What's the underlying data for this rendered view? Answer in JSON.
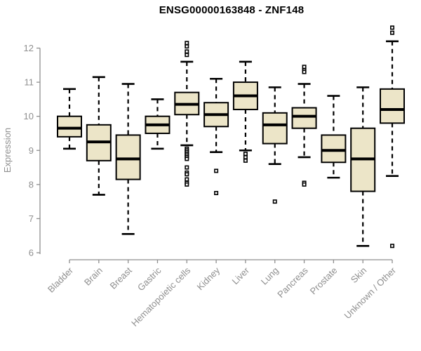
{
  "title": "ENSG00000163848 - ZNF148",
  "chart_data": {
    "type": "boxplot",
    "title": "ENSG00000163848 - ZNF148",
    "xlabel": "",
    "ylabel": "Expression",
    "ylim": [
      6,
      12.7
    ],
    "yticks": [
      6,
      7,
      8,
      9,
      10,
      11,
      12
    ],
    "grid": false,
    "legend": "none",
    "categories": [
      "Bladder",
      "Brain",
      "Breast",
      "Gastric",
      "Hematopoietic cells",
      "Kidney",
      "Liver",
      "Lung",
      "Pancreas",
      "Prostate",
      "Skin",
      "Unknown / Other"
    ],
    "series": [
      {
        "name": "Bladder",
        "whisker_low": 9.05,
        "q1": 9.4,
        "median": 9.65,
        "q3": 10.0,
        "whisker_high": 10.8,
        "outliers": []
      },
      {
        "name": "Brain",
        "whisker_low": 7.7,
        "q1": 8.7,
        "median": 9.25,
        "q3": 9.75,
        "whisker_high": 11.15,
        "outliers": []
      },
      {
        "name": "Breast",
        "whisker_low": 6.55,
        "q1": 8.15,
        "median": 8.75,
        "q3": 9.45,
        "whisker_high": 10.95,
        "outliers": []
      },
      {
        "name": "Gastric",
        "whisker_low": 9.05,
        "q1": 9.5,
        "median": 9.75,
        "q3": 10.0,
        "whisker_high": 10.5,
        "outliers": []
      },
      {
        "name": "Hematopoietic cells",
        "whisker_low": 9.15,
        "q1": 10.05,
        "median": 10.35,
        "q3": 10.7,
        "whisker_high": 11.6,
        "outliers": [
          12.15,
          12.05,
          11.9,
          11.8,
          9.05,
          9.0,
          8.95,
          8.9,
          8.85,
          8.8,
          8.75,
          8.5,
          8.35,
          8.3,
          8.15,
          8.05,
          8.0
        ]
      },
      {
        "name": "Kidney",
        "whisker_low": 8.95,
        "q1": 9.7,
        "median": 10.05,
        "q3": 10.4,
        "whisker_high": 11.1,
        "outliers": [
          8.4,
          7.75
        ]
      },
      {
        "name": "Liver",
        "whisker_low": 9.0,
        "q1": 10.2,
        "median": 10.6,
        "q3": 11.0,
        "whisker_high": 11.6,
        "outliers": [
          8.9,
          8.8,
          8.7
        ]
      },
      {
        "name": "Lung",
        "whisker_low": 8.6,
        "q1": 9.2,
        "median": 9.75,
        "q3": 10.1,
        "whisker_high": 10.85,
        "outliers": [
          7.5
        ]
      },
      {
        "name": "Pancreas",
        "whisker_low": 8.8,
        "q1": 9.65,
        "median": 10.0,
        "q3": 10.25,
        "whisker_high": 10.95,
        "outliers": [
          11.45,
          11.35,
          11.3,
          8.05,
          8.0
        ]
      },
      {
        "name": "Prostate",
        "whisker_low": 8.2,
        "q1": 8.65,
        "median": 9.0,
        "q3": 9.45,
        "whisker_high": 10.6,
        "outliers": []
      },
      {
        "name": "Skin",
        "whisker_low": 6.2,
        "q1": 7.8,
        "median": 8.75,
        "q3": 9.65,
        "whisker_high": 10.85,
        "outliers": []
      },
      {
        "name": "Unknown / Other",
        "whisker_low": 8.25,
        "q1": 9.8,
        "median": 10.2,
        "q3": 10.8,
        "whisker_high": 12.2,
        "outliers": [
          12.6,
          12.45,
          6.2
        ]
      }
    ]
  },
  "colors": {
    "box_fill": "#ECE5C8",
    "box_stroke": "#000000",
    "median": "#000000",
    "whisker": "#000000",
    "axis": "#8f8f8f",
    "axis_text": "#8f8f8f",
    "title": "#000000",
    "background": "#ffffff"
  }
}
